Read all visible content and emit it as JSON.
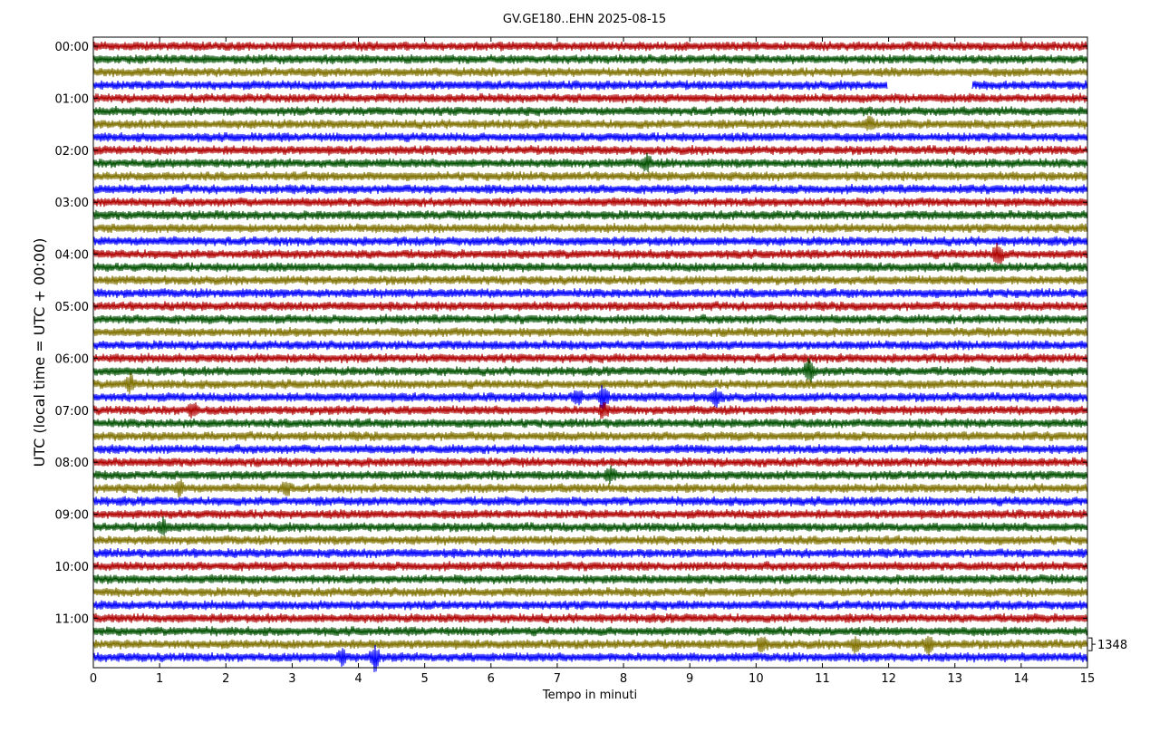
{
  "chart_data": {
    "type": "line",
    "subtype": "helicorder",
    "title": "GV.GE180..EHN 2025-08-15",
    "xlabel": "Tempo in minuti",
    "ylabel": "UTC (local time = UTC + 00:00)",
    "xlim": [
      0,
      15
    ],
    "x_ticks": [
      "0",
      "1",
      "2",
      "3",
      "4",
      "5",
      "6",
      "7",
      "8",
      "9",
      "10",
      "11",
      "12",
      "13",
      "14",
      "15"
    ],
    "row_minutes": 15,
    "rows": 48,
    "y_tick_labels": [
      "00:00",
      "01:00",
      "02:00",
      "03:00",
      "04:00",
      "05:00",
      "06:00",
      "07:00",
      "08:00",
      "09:00",
      "10:00",
      "11:00"
    ],
    "trace_colors": [
      "#b00000",
      "#005000",
      "#7f7000",
      "#0000ff"
    ],
    "scale_label": "1348",
    "gaps": [
      {
        "row": 3,
        "from_minute": 11.98,
        "to_minute": 13.25
      }
    ],
    "events": [
      {
        "row": 3,
        "minute": 12.5,
        "amplitude": 0
      },
      {
        "row": 6,
        "minute": 11.7,
        "amplitude": 1.4
      },
      {
        "row": 9,
        "minute": 8.35,
        "amplitude": 1.5
      },
      {
        "row": 16,
        "minute": 13.65,
        "amplitude": 2.2
      },
      {
        "row": 25,
        "minute": 10.8,
        "amplitude": 2.4
      },
      {
        "row": 26,
        "minute": 0.55,
        "amplitude": 2.0
      },
      {
        "row": 27,
        "minute": 7.7,
        "amplitude": 2.4
      },
      {
        "row": 27,
        "minute": 7.3,
        "amplitude": 1.6
      },
      {
        "row": 27,
        "minute": 9.4,
        "amplitude": 1.6
      },
      {
        "row": 28,
        "minute": 1.5,
        "amplitude": 1.4
      },
      {
        "row": 28,
        "minute": 7.7,
        "amplitude": 1.6
      },
      {
        "row": 33,
        "minute": 7.8,
        "amplitude": 1.8
      },
      {
        "row": 34,
        "minute": 1.3,
        "amplitude": 1.5
      },
      {
        "row": 34,
        "minute": 2.9,
        "amplitude": 1.5
      },
      {
        "row": 37,
        "minute": 1.05,
        "amplitude": 1.6
      },
      {
        "row": 46,
        "minute": 10.1,
        "amplitude": 1.6
      },
      {
        "row": 46,
        "minute": 11.5,
        "amplitude": 1.6
      },
      {
        "row": 46,
        "minute": 12.6,
        "amplitude": 1.8
      },
      {
        "row": 47,
        "minute": 4.25,
        "amplitude": 2.6
      },
      {
        "row": 47,
        "minute": 3.75,
        "amplitude": 1.4
      }
    ]
  }
}
